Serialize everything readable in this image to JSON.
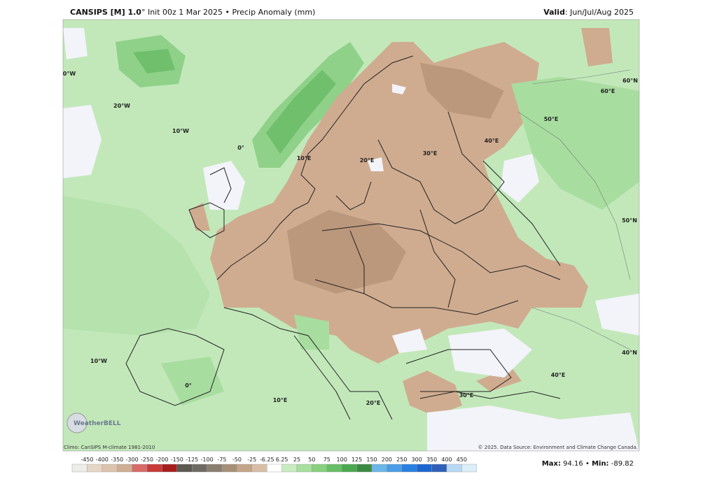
{
  "header": {
    "title_bold": "CANSIPS [M] 1.0",
    "title_rest": "° Init 00z 1 Mar 2025 • Precip Anomaly (mm)",
    "valid_label": "Valid",
    "valid_value": ": Jun/Jul/Aug 2025"
  },
  "map": {
    "labels": [
      "0°W",
      "20°W",
      "10°W",
      "0°",
      "10°E",
      "20°E",
      "30°E",
      "40°E",
      "50°E",
      "60°E",
      "60°N",
      "50°N",
      "40°N",
      "10°W",
      "0°",
      "10°E",
      "20°E",
      "30°E",
      "40°E"
    ],
    "logo": "WeatherBELL",
    "climo": "Climo: CanSIPS M-climate 1981-2010",
    "copyright": "© 2025. Data Source: Environment and Climate Change Canada."
  },
  "legend": {
    "ticks": [
      -450,
      -400,
      -350,
      -300,
      -250,
      -200,
      -150,
      -125,
      -100,
      -75,
      -50,
      -25,
      -6.25,
      6.25,
      25,
      50,
      75,
      100,
      125,
      150,
      200,
      250,
      300,
      350,
      400,
      450
    ],
    "colors": [
      "#ecece8",
      "#e6d6c6",
      "#dcc3ae",
      "#cfae94",
      "#d86a6a",
      "#c83a3a",
      "#a81e1e",
      "#5c5852",
      "#6e6a62",
      "#8a7e70",
      "#a68f78",
      "#c4a58a",
      "#d8bea6",
      "#ffffff",
      "#c8ecc0",
      "#a6df9e",
      "#86d07e",
      "#66bf66",
      "#4aa84e",
      "#3a8a44",
      "#6ab6e8",
      "#4a9de6",
      "#2a80e0",
      "#1c66d0",
      "#2f5fb8",
      "#b8d8f4",
      "#dceef8"
    ]
  },
  "stats": {
    "max_label": "Max:",
    "max": 94.16,
    "sep": " • ",
    "min_label": "Min:",
    "min": -89.82
  }
}
